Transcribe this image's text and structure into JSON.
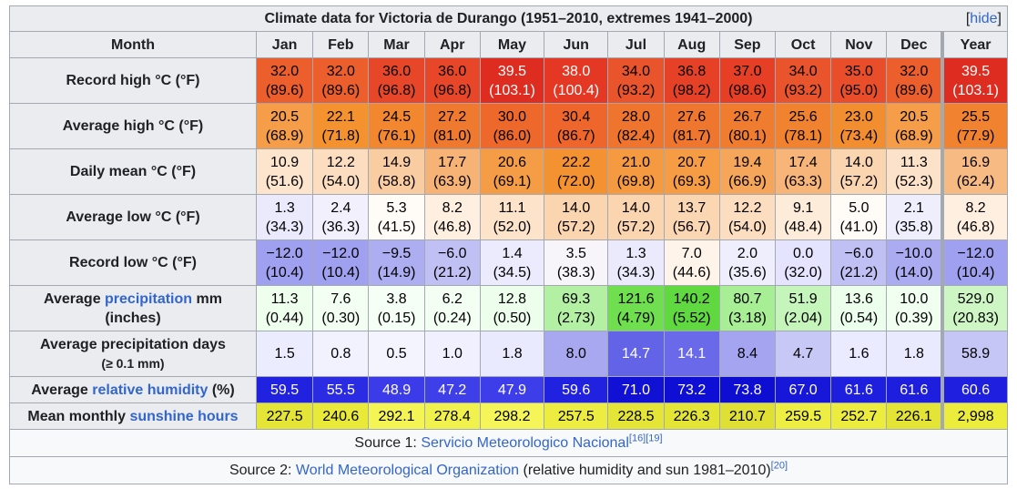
{
  "title": "Climate data for Victoria de Durango (1951–2010, extremes 1941–2000)",
  "hide_link": "hide",
  "header": {
    "month_label": "Month",
    "months": [
      "Jan",
      "Feb",
      "Mar",
      "Apr",
      "May",
      "Jun",
      "Jul",
      "Aug",
      "Sep",
      "Oct",
      "Nov",
      "Dec"
    ],
    "year_label": "Year"
  },
  "rows": [
    {
      "label": [
        {
          "text": "Record high °C (°F)"
        }
      ],
      "scale": "temp",
      "values": [
        [
          "32.0",
          "(89.6)"
        ],
        [
          "32.0",
          "(89.6)"
        ],
        [
          "36.0",
          "(96.8)"
        ],
        [
          "36.0",
          "(96.8)"
        ],
        [
          "39.5",
          "(103.1)"
        ],
        [
          "38.0",
          "(100.4)"
        ],
        [
          "34.0",
          "(93.2)"
        ],
        [
          "36.8",
          "(98.2)"
        ],
        [
          "37.0",
          "(98.6)"
        ],
        [
          "34.0",
          "(93.2)"
        ],
        [
          "35.0",
          "(95.0)"
        ],
        [
          "32.0",
          "(89.6)"
        ]
      ],
      "year": [
        "39.5",
        "(103.1)"
      ]
    },
    {
      "label": [
        {
          "text": "Average high °C (°F)"
        }
      ],
      "scale": "temp",
      "values": [
        [
          "20.5",
          "(68.9)"
        ],
        [
          "22.1",
          "(71.8)"
        ],
        [
          "24.5",
          "(76.1)"
        ],
        [
          "27.2",
          "(81.0)"
        ],
        [
          "30.0",
          "(86.0)"
        ],
        [
          "30.4",
          "(86.7)"
        ],
        [
          "28.0",
          "(82.4)"
        ],
        [
          "27.6",
          "(81.7)"
        ],
        [
          "26.7",
          "(80.1)"
        ],
        [
          "25.6",
          "(78.1)"
        ],
        [
          "23.0",
          "(73.4)"
        ],
        [
          "20.5",
          "(68.9)"
        ]
      ],
      "year": [
        "25.5",
        "(77.9)"
      ]
    },
    {
      "label": [
        {
          "text": "Daily mean °C (°F)"
        }
      ],
      "scale": "temp",
      "values": [
        [
          "10.9",
          "(51.6)"
        ],
        [
          "12.2",
          "(54.0)"
        ],
        [
          "14.9",
          "(58.8)"
        ],
        [
          "17.7",
          "(63.9)"
        ],
        [
          "20.6",
          "(69.1)"
        ],
        [
          "22.2",
          "(72.0)"
        ],
        [
          "21.0",
          "(69.8)"
        ],
        [
          "20.7",
          "(69.3)"
        ],
        [
          "19.4",
          "(66.9)"
        ],
        [
          "17.4",
          "(63.3)"
        ],
        [
          "14.0",
          "(57.2)"
        ],
        [
          "11.3",
          "(52.3)"
        ]
      ],
      "year": [
        "16.9",
        "(62.4)"
      ]
    },
    {
      "label": [
        {
          "text": "Average low °C (°F)"
        }
      ],
      "scale": "temp",
      "values": [
        [
          "1.3",
          "(34.3)"
        ],
        [
          "2.4",
          "(36.3)"
        ],
        [
          "5.3",
          "(41.5)"
        ],
        [
          "8.2",
          "(46.8)"
        ],
        [
          "11.1",
          "(52.0)"
        ],
        [
          "14.0",
          "(57.2)"
        ],
        [
          "14.0",
          "(57.2)"
        ],
        [
          "13.7",
          "(56.7)"
        ],
        [
          "12.2",
          "(54.0)"
        ],
        [
          "9.1",
          "(48.4)"
        ],
        [
          "5.0",
          "(41.0)"
        ],
        [
          "2.1",
          "(35.8)"
        ]
      ],
      "year": [
        "8.2",
        "(46.8)"
      ]
    },
    {
      "label": [
        {
          "text": "Record low °C (°F)"
        }
      ],
      "scale": "temp",
      "values": [
        [
          "−12.0",
          "(10.4)"
        ],
        [
          "−12.0",
          "(10.4)"
        ],
        [
          "−9.5",
          "(14.9)"
        ],
        [
          "−6.0",
          "(21.2)"
        ],
        [
          "1.4",
          "(34.5)"
        ],
        [
          "3.5",
          "(38.3)"
        ],
        [
          "1.3",
          "(34.3)"
        ],
        [
          "7.0",
          "(44.6)"
        ],
        [
          "2.0",
          "(35.6)"
        ],
        [
          "0.0",
          "(32.0)"
        ],
        [
          "−6.0",
          "(21.2)"
        ],
        [
          "−10.0",
          "(14.0)"
        ]
      ],
      "year": [
        "−12.0",
        "(10.4)"
      ]
    },
    {
      "label": [
        {
          "text": "Average "
        },
        {
          "text": "precipitation",
          "link": true
        },
        {
          "text": " mm"
        },
        {
          "text": "(inches)",
          "br": true
        }
      ],
      "scale": "precip",
      "values": [
        [
          "11.3",
          "(0.44)"
        ],
        [
          "7.6",
          "(0.30)"
        ],
        [
          "3.8",
          "(0.15)"
        ],
        [
          "6.2",
          "(0.24)"
        ],
        [
          "12.8",
          "(0.50)"
        ],
        [
          "69.3",
          "(2.73)"
        ],
        [
          "121.6",
          "(4.79)"
        ],
        [
          "140.2",
          "(5.52)"
        ],
        [
          "80.7",
          "(3.18)"
        ],
        [
          "51.9",
          "(2.04)"
        ],
        [
          "13.6",
          "(0.54)"
        ],
        [
          "10.0",
          "(0.39)"
        ]
      ],
      "year": [
        "529.0",
        "(20.83)"
      ]
    },
    {
      "label": [
        {
          "text": "Average precipitation days"
        },
        {
          "text": "(≥ 0.1 mm)",
          "br": true,
          "small": true
        }
      ],
      "scale": "days",
      "values": [
        [
          "1.5"
        ],
        [
          "0.8"
        ],
        [
          "0.5"
        ],
        [
          "1.0"
        ],
        [
          "1.8"
        ],
        [
          "8.0"
        ],
        [
          "14.7"
        ],
        [
          "14.1"
        ],
        [
          "8.4"
        ],
        [
          "4.7"
        ],
        [
          "1.6"
        ],
        [
          "1.8"
        ]
      ],
      "year": [
        "58.9"
      ]
    },
    {
      "label": [
        {
          "text": "Average "
        },
        {
          "text": "relative humidity",
          "link": true
        },
        {
          "text": " (%)"
        }
      ],
      "scale": "humidity",
      "short": true,
      "values": [
        [
          "59.5"
        ],
        [
          "55.5"
        ],
        [
          "48.9"
        ],
        [
          "47.2"
        ],
        [
          "47.9"
        ],
        [
          "59.6"
        ],
        [
          "71.0"
        ],
        [
          "73.2"
        ],
        [
          "73.8"
        ],
        [
          "67.0"
        ],
        [
          "61.6"
        ],
        [
          "61.6"
        ]
      ],
      "year": [
        "60.6"
      ]
    },
    {
      "label": [
        {
          "text": "Mean monthly "
        },
        {
          "text": "sunshine hours",
          "link": true
        }
      ],
      "scale": "sun",
      "short": true,
      "values": [
        [
          "227.5"
        ],
        [
          "240.6"
        ],
        [
          "292.1"
        ],
        [
          "278.4"
        ],
        [
          "298.2"
        ],
        [
          "257.5"
        ],
        [
          "228.5"
        ],
        [
          "226.3"
        ],
        [
          "210.7"
        ],
        [
          "259.5"
        ],
        [
          "252.7"
        ],
        [
          "226.1"
        ]
      ],
      "year": [
        "2,998"
      ]
    }
  ],
  "sources": [
    [
      {
        "text": "Source 1: "
      },
      {
        "text": "Servicio Meteorologico Nacional",
        "link": true
      },
      {
        "text": "[16]",
        "sup": true
      },
      {
        "text": "[19]",
        "sup": true
      }
    ],
    [
      {
        "text": "Source 2: "
      },
      {
        "text": "World Meteorological Organization",
        "link": true
      },
      {
        "text": " (relative humidity and sun 1981–2010)"
      },
      {
        "text": "[20]",
        "sup": true
      }
    ]
  ],
  "colors": {
    "border": "#a2a9b1",
    "header_bg": "#eaecf0",
    "link": "#3366cc"
  }
}
